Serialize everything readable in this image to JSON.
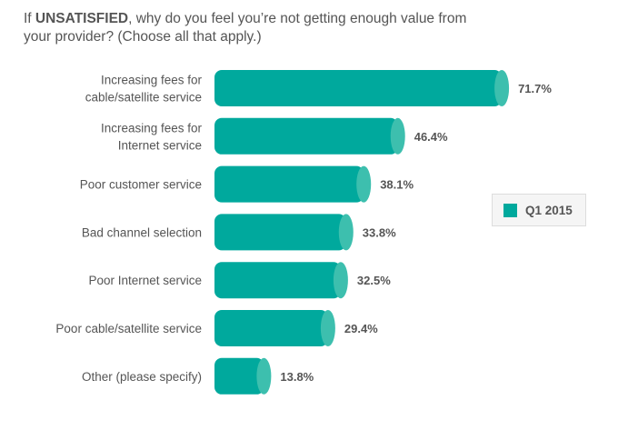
{
  "chart_data": {
    "type": "bar",
    "orientation": "horizontal",
    "title_prefix": "If ",
    "title_bold": "UNSATISFIED",
    "title_rest": ", why do you feel you’re not getting enough value from your provider? (Choose all that apply.)",
    "categories": [
      [
        "Increasing fees for",
        "cable/satellite service"
      ],
      [
        "Increasing fees for",
        "Internet service"
      ],
      [
        "Poor customer service"
      ],
      [
        "Bad channel selection"
      ],
      [
        "Poor Internet service"
      ],
      [
        "Poor cable/satellite service"
      ],
      [
        "Other (please specify)"
      ]
    ],
    "series": [
      {
        "name": "Q1 2015",
        "values": [
          71.7,
          46.4,
          38.1,
          33.8,
          32.5,
          29.4,
          13.8
        ],
        "color": "#00a99d",
        "cap_color": "#3dbfae"
      }
    ],
    "value_labels": [
      "71.7%",
      "46.4%",
      "38.1%",
      "33.8%",
      "32.5%",
      "29.4%",
      "13.8%"
    ],
    "xlim": [
      0,
      100
    ],
    "grid": false,
    "legend_position": "right"
  }
}
